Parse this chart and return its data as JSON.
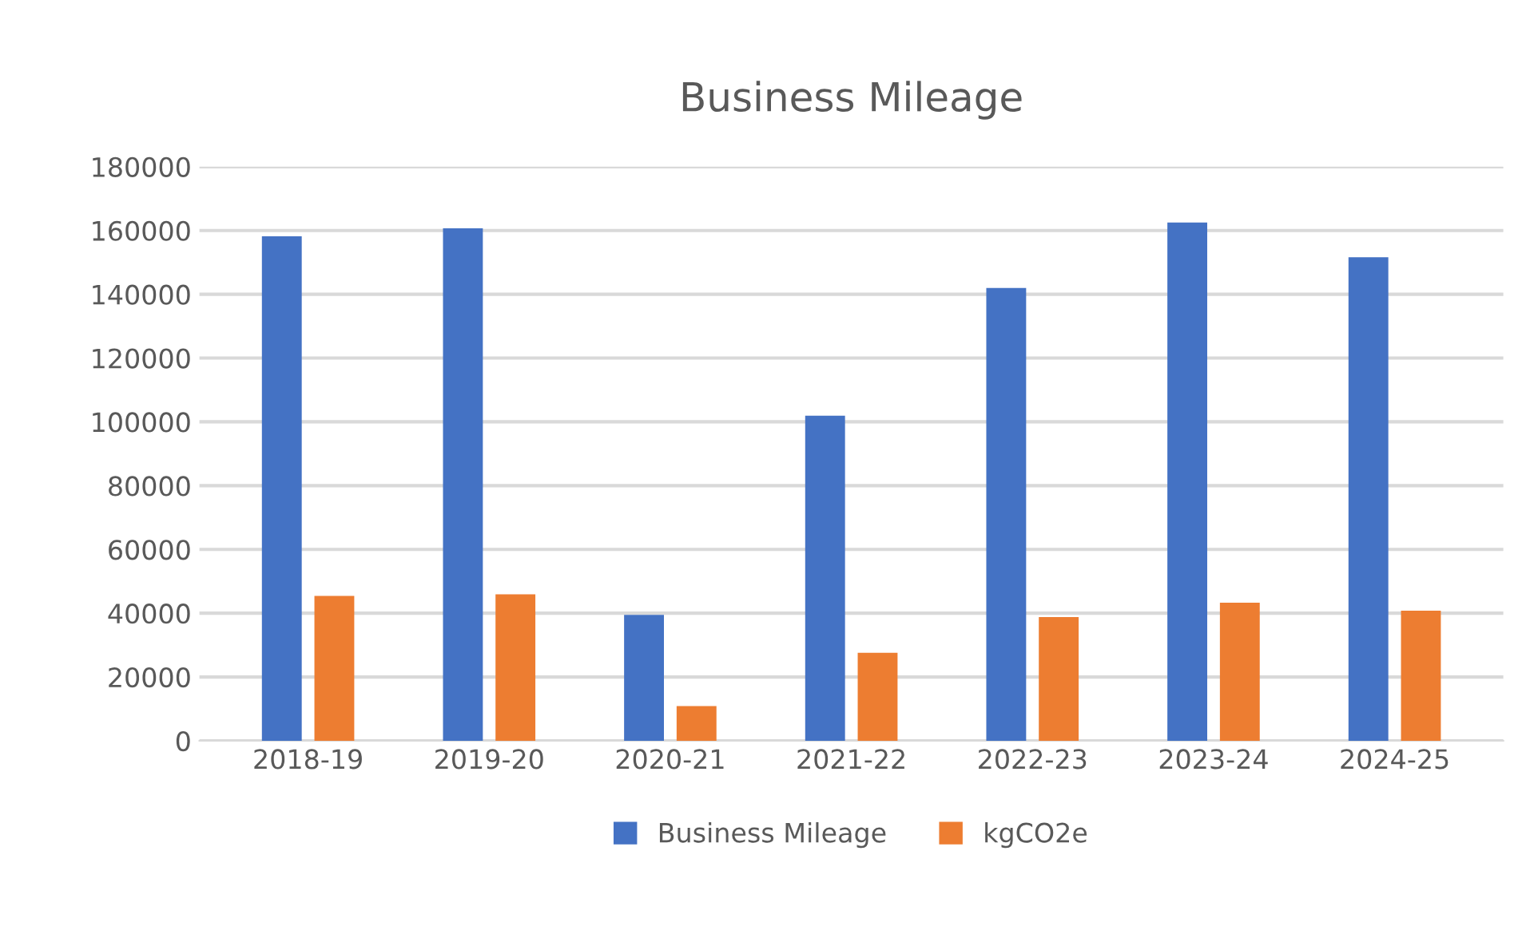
{
  "chart_data": {
    "type": "bar",
    "title": "Business Mileage",
    "categories": [
      "2018-19",
      "2019-20",
      "2020-21",
      "2021-22",
      "2022-23",
      "2023-24",
      "2024-25"
    ],
    "series": [
      {
        "name": "Business Mileage",
        "color": "#4472c4",
        "values": [
          158200,
          160700,
          39500,
          101900,
          142000,
          162500,
          151600
        ]
      },
      {
        "name": "kgCO2e",
        "color": "#ed7d31",
        "values": [
          45400,
          45900,
          10900,
          27600,
          38800,
          43300,
          40800
        ]
      }
    ],
    "ylim": [
      0,
      180000
    ],
    "yticks": [
      0,
      20000,
      40000,
      60000,
      80000,
      100000,
      120000,
      140000,
      160000,
      180000
    ],
    "grid": "y",
    "legend": "bottom"
  }
}
